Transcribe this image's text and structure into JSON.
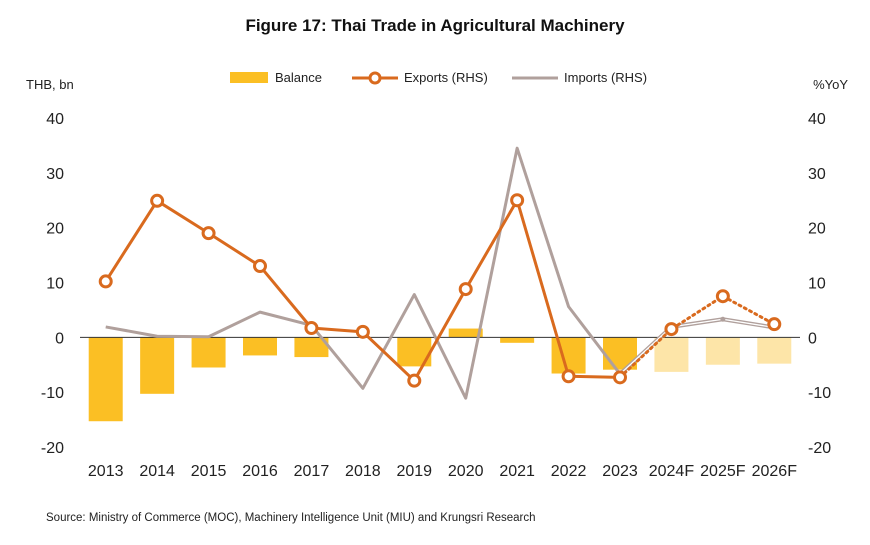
{
  "title": "Figure 17: Thai Trade in Agricultural Machinery",
  "left_unit": "THB, bn",
  "right_unit": "%YoY",
  "legend": {
    "balance": "Balance",
    "exports": "Exports (RHS)",
    "imports": "Imports (RHS)"
  },
  "source": "Source: Ministry of Commerce (MOC), Machinery Intelligence Unit (MIU) and Krungsri Research",
  "colors": {
    "balance": "#FBBF24",
    "balance_forecast": "#FDE5A8",
    "exports": "#D96A1E",
    "imports": "#B0A09C"
  },
  "chart_data": {
    "type": "bar",
    "categories": [
      "2013",
      "2014",
      "2015",
      "2016",
      "2017",
      "2018",
      "2019",
      "2020",
      "2021",
      "2022",
      "2023",
      "2024F",
      "2025F",
      "2026F"
    ],
    "forecast_from_index": 11,
    "y_left": {
      "label": "THB, bn",
      "lim": [
        -20,
        40
      ],
      "ticks": [
        40,
        30,
        20,
        10,
        0,
        -10,
        -20
      ]
    },
    "y_right": {
      "label": "%YoY",
      "lim": [
        -20,
        40
      ],
      "ticks": [
        40,
        30,
        20,
        10,
        0,
        -10,
        -20
      ]
    },
    "series": [
      {
        "name": "Balance",
        "type": "bar",
        "axis": "left",
        "values": [
          -15.3,
          -10.3,
          -5.5,
          -3.3,
          -3.6,
          0,
          -5.3,
          1.6,
          -1.0,
          -6.6,
          -5.9,
          -6.3,
          -5.0,
          -4.8
        ]
      },
      {
        "name": "Exports (RHS)",
        "type": "line",
        "axis": "right",
        "values": [
          10.2,
          24.9,
          19.0,
          13.0,
          1.7,
          1.0,
          -7.9,
          8.8,
          25.0,
          -7.1,
          -7.3,
          1.5,
          7.5,
          2.4
        ]
      },
      {
        "name": "Imports (RHS)",
        "type": "line",
        "axis": "right",
        "values": [
          1.9,
          0.2,
          0.1,
          4.6,
          2.2,
          -9.3,
          7.8,
          -11.1,
          34.5,
          5.6,
          -6.7,
          1.9,
          3.3,
          1.8
        ]
      }
    ]
  }
}
